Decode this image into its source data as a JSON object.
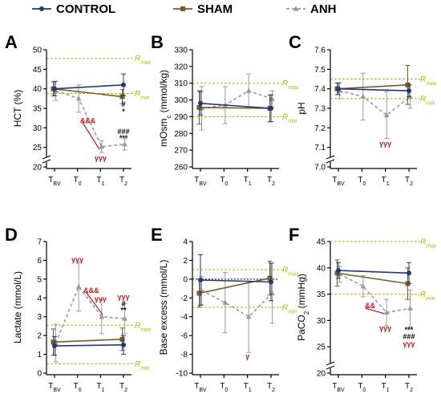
{
  "colors": {
    "control": "#1f3a7a",
    "sham": "#7a5a23",
    "anh": "#9a9a9a",
    "reference": "#b5b300",
    "significance_red": "#c01818",
    "significance_black": "#000000"
  },
  "legend": [
    {
      "key": "control",
      "label": "CONTROL",
      "marker": "circle",
      "dash": false
    },
    {
      "key": "sham",
      "label": "SHAM",
      "marker": "square",
      "dash": false
    },
    {
      "key": "anh",
      "label": "ANH",
      "marker": "triangle",
      "dash": true
    }
  ],
  "chart_data": [
    {
      "panel": "A",
      "type": "line",
      "ylabel": "HCT (%)",
      "x_ticks": [
        {
          "main": "T",
          "sub": "BV"
        },
        {
          "main": "T",
          "sub": "0"
        },
        {
          "main": "T",
          "sub": "1"
        },
        {
          "main": "T",
          "sub": "2"
        }
      ],
      "ylim": [
        20,
        50
      ],
      "yticks": [
        20,
        25,
        30,
        35,
        40,
        45,
        50
      ],
      "y_break": true,
      "reference_lines": [
        {
          "label": "R",
          "sub": "max",
          "value": 47.8
        },
        {
          "label": "R",
          "sub": "min",
          "value": 38.8
        }
      ],
      "series": [
        {
          "key": "control",
          "x_index": [
            0,
            3
          ],
          "values": [
            40,
            41
          ],
          "errors": [
            1.8,
            2.8
          ]
        },
        {
          "key": "sham",
          "x_index": [
            0,
            3
          ],
          "values": [
            40,
            38
          ],
          "errors": [
            1.8,
            1.8
          ]
        },
        {
          "key": "anh",
          "x_index": [
            0,
            1,
            2,
            3
          ],
          "values": [
            39.5,
            37.5,
            25.2,
            25.8
          ],
          "errors": [
            2.5,
            3.5,
            1.5,
            1.5
          ]
        }
      ],
      "annotations": [
        {
          "text": "&&&",
          "color": "red",
          "x_index": 1.45,
          "value": 31.8,
          "arrow_to_x": 1.95,
          "arrow_to_y": 24.5
        },
        {
          "text": "γγγ",
          "color": "red",
          "x_index": 2,
          "value": 22.3
        },
        {
          "text": "#",
          "color": "black",
          "x_index": 3,
          "value": 36.0
        },
        {
          "text": "*",
          "color": "black",
          "x_index": 3,
          "value": 34.2
        },
        {
          "text": "###",
          "color": "black",
          "x_index": 3,
          "value": 29.0
        },
        {
          "text": "***",
          "color": "black",
          "x_index": 3,
          "value": 27.4
        }
      ]
    },
    {
      "panel": "B",
      "type": "line",
      "ylabel": "mOsm",
      "ylabel_sub": "c",
      "ylabel_tail": " (mmol/kg)",
      "x_ticks": [
        {
          "main": "T",
          "sub": "BV"
        },
        {
          "main": "T",
          "sub": "0"
        },
        {
          "main": "T",
          "sub": "1"
        },
        {
          "main": "T",
          "sub": "2"
        }
      ],
      "ylim": [
        260,
        330
      ],
      "yticks": [
        260,
        270,
        280,
        290,
        300,
        310,
        320,
        330
      ],
      "y_break": false,
      "reference_lines": [
        {
          "label": "R",
          "sub": "max",
          "value": 310
        },
        {
          "label": "R",
          "sub": "min",
          "value": 290
        }
      ],
      "series": [
        {
          "key": "control",
          "x_index": [
            0,
            3
          ],
          "values": [
            298,
            295
          ],
          "errors": [
            7,
            8
          ]
        },
        {
          "key": "sham",
          "x_index": [
            0,
            3
          ],
          "values": [
            295.5,
            295
          ],
          "errors": [
            10,
            8
          ]
        },
        {
          "key": "anh",
          "x_index": [
            0,
            1,
            2,
            3
          ],
          "values": [
            295,
            297,
            305.5,
            300.5
          ],
          "errors": [
            13,
            11,
            10,
            5
          ]
        }
      ],
      "annotations": []
    },
    {
      "panel": "C",
      "type": "line",
      "ylabel": "pH",
      "x_ticks": [
        {
          "main": "T",
          "sub": "BV"
        },
        {
          "main": "T",
          "sub": "0"
        },
        {
          "main": "T",
          "sub": "1"
        },
        {
          "main": "T",
          "sub": "2"
        }
      ],
      "ylim": [
        7.0,
        7.6
      ],
      "yticks": [
        7.0,
        7.1,
        7.2,
        7.3,
        7.4,
        7.5,
        7.6
      ],
      "y_break": true,
      "reference_lines": [
        {
          "label": "R",
          "sub": "max",
          "value": 7.45
        },
        {
          "label": "R",
          "sub": "min",
          "value": 7.35
        }
      ],
      "series": [
        {
          "key": "control",
          "x_index": [
            0,
            3
          ],
          "values": [
            7.4,
            7.39
          ],
          "errors": [
            0.03,
            0.03
          ]
        },
        {
          "key": "sham",
          "x_index": [
            0,
            3
          ],
          "values": [
            7.4,
            7.42
          ],
          "errors": [
            0.03,
            0.1
          ]
        },
        {
          "key": "anh",
          "x_index": [
            0,
            1,
            2,
            3
          ],
          "values": [
            7.39,
            7.36,
            7.265,
            7.36
          ],
          "errors": [
            0.04,
            0.12,
            0.12,
            0.06
          ]
        }
      ],
      "annotations": [
        {
          "text": "γγγ",
          "color": "red",
          "x_index": 2,
          "value": 7.12
        }
      ]
    },
    {
      "panel": "D",
      "type": "line",
      "ylabel": "Lactate (mmol/L)",
      "x_ticks": [
        {
          "main": "T",
          "sub": "BV"
        },
        {
          "main": "T",
          "sub": "0"
        },
        {
          "main": "T",
          "sub": "1"
        },
        {
          "main": "T",
          "sub": "2"
        }
      ],
      "ylim": [
        0,
        7
      ],
      "yticks": [
        0,
        1,
        2,
        3,
        4,
        5,
        6,
        7
      ],
      "y_break": false,
      "reference_lines": [
        {
          "label": "R",
          "sub": "max",
          "value": 2.55
        },
        {
          "label": "R",
          "sub": "min",
          "value": 0.5
        }
      ],
      "series": [
        {
          "key": "control",
          "x_index": [
            0,
            3
          ],
          "values": [
            1.45,
            1.5
          ],
          "errors": [
            0.5,
            0.5
          ]
        },
        {
          "key": "sham",
          "x_index": [
            0,
            3
          ],
          "values": [
            1.65,
            1.8
          ],
          "errors": [
            0.7,
            0.6
          ]
        },
        {
          "key": "anh",
          "x_index": [
            0,
            1,
            2,
            3
          ],
          "values": [
            1.6,
            4.6,
            3.0,
            2.9
          ],
          "errors": [
            1.0,
            1.3,
            0.9,
            0.8
          ]
        }
      ],
      "annotations": [
        {
          "text": "γγγ",
          "color": "red",
          "x_index": 1,
          "value": 6.05
        },
        {
          "text": "&&&",
          "color": "red",
          "x_index": 1.6,
          "value": 4.4,
          "arrow_to_x": 2.1,
          "arrow_to_y": 3.1
        },
        {
          "text": "γγγ",
          "color": "red",
          "x_index": 2,
          "value": 3.95
        },
        {
          "text": "γγγ",
          "color": "red",
          "x_index": 3,
          "value": 4.05
        },
        {
          "text": "#",
          "color": "black",
          "x_index": 3,
          "value": 3.7
        },
        {
          "text": "**",
          "color": "black",
          "x_index": 3,
          "value": 3.35
        }
      ]
    },
    {
      "panel": "E",
      "type": "line",
      "ylabel": "Base excess (mmol/L)",
      "x_ticks": [
        {
          "main": "T",
          "sub": "BV"
        },
        {
          "main": "T",
          "sub": "0"
        },
        {
          "main": "T",
          "sub": "1"
        },
        {
          "main": "T",
          "sub": "2"
        }
      ],
      "ylim": [
        -10,
        4
      ],
      "yticks": [
        -10,
        -8,
        -6,
        -4,
        -2,
        0,
        2,
        4
      ],
      "y_break": false,
      "reference_lines": [
        {
          "label": "R",
          "sub": "max",
          "value": 1
        },
        {
          "label": "R",
          "sub": "min",
          "value": -3
        }
      ],
      "zero_line": true,
      "series": [
        {
          "key": "control",
          "x_index": [
            0,
            3
          ],
          "values": [
            -0.1,
            -0.3
          ],
          "errors": [
            2.7,
            2.0
          ]
        },
        {
          "key": "sham",
          "x_index": [
            0,
            3
          ],
          "values": [
            -1.5,
            0.1
          ],
          "errors": [
            1.5,
            1.8
          ]
        },
        {
          "key": "anh",
          "x_index": [
            0,
            1,
            2,
            3
          ],
          "values": [
            -1.2,
            -2.5,
            -4.0,
            -1.5
          ],
          "errors": [
            1.5,
            3.2,
            3.8,
            3.2
          ]
        }
      ],
      "annotations": [
        {
          "text": "γ",
          "color": "red",
          "x_index": 2,
          "value": -8.2
        }
      ]
    },
    {
      "panel": "F",
      "type": "line",
      "ylabel": "PaCO",
      "ylabel_sub": "2",
      "ylabel_tail": " (mmHg)",
      "x_ticks": [
        {
          "main": "T",
          "sub": "BV"
        },
        {
          "main": "T",
          "sub": "0"
        },
        {
          "main": "T",
          "sub": "1"
        },
        {
          "main": "T",
          "sub": "2"
        }
      ],
      "ylim": [
        20,
        45
      ],
      "yticks": [
        20,
        25,
        30,
        35,
        40,
        45
      ],
      "y_break": true,
      "reference_lines": [
        {
          "label": "R",
          "sub": "max",
          "value": 45
        },
        {
          "label": "R",
          "sub": "min",
          "value": 35
        }
      ],
      "series": [
        {
          "key": "control",
          "x_index": [
            0,
            3
          ],
          "values": [
            39.5,
            39
          ],
          "errors": [
            1.5,
            2.0
          ]
        },
        {
          "key": "sham",
          "x_index": [
            0,
            3
          ],
          "values": [
            39,
            37
          ],
          "errors": [
            2.5,
            3.0
          ]
        },
        {
          "key": "anh",
          "x_index": [
            0,
            1,
            2,
            3
          ],
          "values": [
            38.8,
            36.5,
            31.5,
            32.3
          ],
          "errors": [
            1.5,
            2.0,
            2.5,
            3.5
          ]
        }
      ],
      "annotations": [
        {
          "text": "&&",
          "color": "red",
          "x_index": 1.35,
          "value": 32.8,
          "arrow_to_x": 1.95,
          "arrow_to_y": 31.3
        },
        {
          "text": "γγγ",
          "color": "red",
          "x_index": 2,
          "value": 28.5
        },
        {
          "text": "***",
          "color": "black",
          "x_index": 3,
          "value": 28.2
        },
        {
          "text": "###",
          "color": "black",
          "x_index": 3,
          "value": 26.9
        },
        {
          "text": "γγγ",
          "color": "red",
          "x_index": 3,
          "value": 25.6
        }
      ]
    }
  ]
}
